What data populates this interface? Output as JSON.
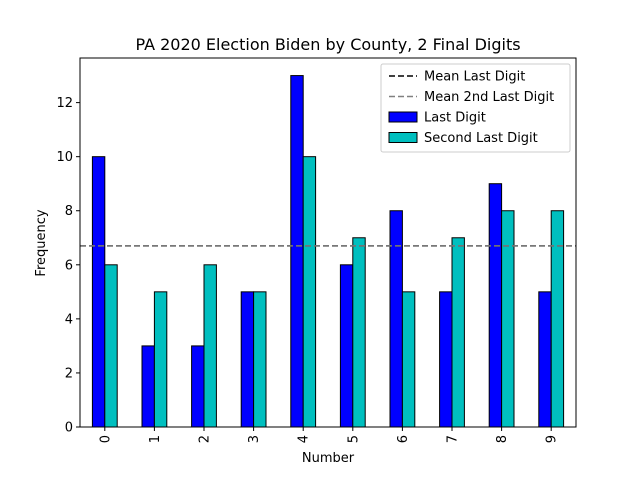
{
  "chart_data": {
    "type": "bar",
    "title": "PA 2020 Election Biden by County, 2 Final Digits",
    "xlabel": "Number",
    "ylabel": "Frequency",
    "categories": [
      "0",
      "1",
      "2",
      "3",
      "4",
      "5",
      "6",
      "7",
      "8",
      "9"
    ],
    "series": [
      {
        "name": "Last Digit",
        "values": [
          10,
          3,
          3,
          5,
          13,
          6,
          8,
          5,
          9,
          5
        ],
        "color": "#0000ff"
      },
      {
        "name": "Second Last Digit",
        "values": [
          6,
          5,
          6,
          5,
          10,
          7,
          5,
          7,
          8,
          8
        ],
        "color": "#00bfbf"
      }
    ],
    "reference_lines": [
      {
        "name": "Mean Last Digit",
        "value": 6.7,
        "color": "#000000",
        "style": "dashed"
      },
      {
        "name": "Mean 2nd Last Digit",
        "value": 6.7,
        "color": "#808080",
        "style": "dashed"
      }
    ],
    "ylim": [
      0,
      13.65
    ],
    "yticks": [
      0,
      2,
      4,
      6,
      8,
      10,
      12
    ],
    "xtick_rotation": 90,
    "grid": false,
    "legend": "top-right"
  }
}
